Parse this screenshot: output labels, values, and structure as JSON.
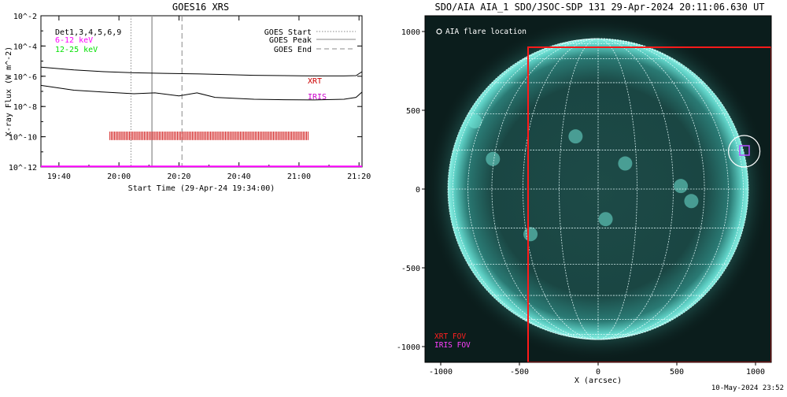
{
  "chart_data": [
    {
      "type": "line",
      "title": "GOES16 XRS",
      "xlabel": "Start Time (29-Apr-24 19:34:00)",
      "ylabel": "X-ray Flux (W m^-2)",
      "y_scale": "log",
      "ylim": [
        "1e-12",
        "1e-2"
      ],
      "xlim": [
        "19:34",
        "21:21"
      ],
      "x_ticks": [
        "19:40",
        "20:00",
        "20:20",
        "20:40",
        "21:00",
        "21:20"
      ],
      "y_ticks": [
        "10^-2",
        "10^-4",
        "10^-6",
        "10^-8",
        "10^-10",
        "10^-12"
      ],
      "legend_left": [
        {
          "text": "Det1,3,4,5,6,9",
          "color": "#000000"
        },
        {
          "text": "6-12 keV",
          "color": "#ff00ff"
        },
        {
          "text": "12-25 keV",
          "color": "#00e000"
        }
      ],
      "legend_right": [
        {
          "text": "GOES Start",
          "style": "dotted"
        },
        {
          "text": "GOES Peak",
          "style": "solid"
        },
        {
          "text": "GOES End",
          "style": "dashed"
        }
      ],
      "annotations": [
        {
          "text": "XRT",
          "color": "#cc0000"
        },
        {
          "text": "IRIS",
          "color": "#cc00cc"
        }
      ],
      "vlines": {
        "goes_start": "20:04",
        "goes_peak": "20:11",
        "goes_end": "20:21"
      },
      "series": [
        {
          "color": "#000000",
          "x": [
            "19:34",
            "19:45",
            "19:55",
            "20:05",
            "20:15",
            "20:25",
            "20:35",
            "20:45",
            "20:55",
            "21:05",
            "21:15",
            "21:19",
            "21:21"
          ],
          "y": [
            4e-06,
            2.6e-06,
            2e-06,
            1.7e-06,
            1.55e-06,
            1.45e-06,
            1.3e-06,
            1.15e-06,
            1.1e-06,
            1.05e-06,
            1.05e-06,
            1.1e-06,
            2e-06
          ]
        },
        {
          "color": "#000000",
          "x": [
            "19:34",
            "19:45",
            "19:55",
            "20:05",
            "20:12",
            "20:20",
            "20:26",
            "20:32",
            "20:45",
            "20:55",
            "21:05",
            "21:15",
            "21:19",
            "21:21"
          ],
          "y": [
            2.5e-07,
            1.2e-07,
            9e-08,
            7e-08,
            8e-08,
            5e-08,
            8e-08,
            4e-08,
            3e-08,
            2.8e-08,
            2.7e-08,
            3e-08,
            4e-08,
            9e-08
          ]
        },
        {
          "color": "#ff00ff",
          "x": [
            "19:34",
            "21:21"
          ],
          "y": [
            1.1e-12,
            1.1e-12
          ]
        }
      ],
      "xrt_ticks_span": [
        "19:57",
        "21:03"
      ]
    },
    {
      "type": "scatter",
      "title": "SDO/AIA AIA_1 SDO/JSOC-SDP 131 29-Apr-2024 20:11:06.630 UT",
      "xlabel": "X (arcsec)",
      "ylabel": "",
      "xlim": [
        -1100,
        1100
      ],
      "ylim": [
        -1100,
        1100
      ],
      "x_ticks": [
        "-1000",
        "-500",
        "0",
        "500",
        "1000"
      ],
      "y_ticks": [
        "1000",
        "500",
        "0",
        "-500",
        "-1000"
      ],
      "legend": [
        {
          "text": "AIA flare location",
          "symbol": "circle",
          "color": "#ffffff"
        }
      ],
      "fov_labels": [
        {
          "text": "XRT FOV",
          "color": "#ff2020"
        },
        {
          "text": "IRIS FOV",
          "color": "#ff40ff"
        }
      ],
      "xrt_fov": {
        "x": [
          -445,
          1100
        ],
        "y": [
          -1100,
          900
        ]
      },
      "flare_location": {
        "x": 928,
        "y": 240
      },
      "iris_fov": {
        "x": [
          900,
          960
        ],
        "y": [
          215,
          275
        ]
      },
      "solar_radius_arcsec": 955,
      "date_stamp": "10-May-2024 23:52"
    }
  ]
}
